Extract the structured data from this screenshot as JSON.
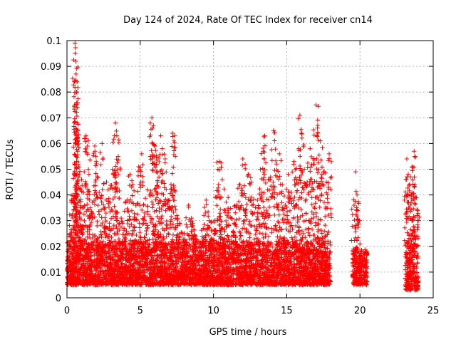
{
  "chart_data": {
    "type": "scatter",
    "title": "Day 124 of 2024, Rate Of TEC Index for receiver cn14",
    "xlabel": "GPS time / hours",
    "ylabel": "ROTI / TECUs",
    "xlim": [
      0,
      25
    ],
    "ylim": [
      0,
      0.1
    ],
    "xticks": [
      "0",
      "5",
      "10",
      "15",
      "20",
      "25"
    ],
    "yticks": [
      "0",
      "0.01",
      "0.02",
      "0.03",
      "0.04",
      "0.05",
      "0.06",
      "0.07",
      "0.08",
      "0.09",
      "0.1"
    ],
    "grid": true,
    "marker": "+",
    "color": "#ff0000",
    "series": [
      {
        "points": [
          [
            0.1,
            0.012
          ],
          [
            0.2,
            0.025
          ],
          [
            0.3,
            0.038
          ],
          [
            0.4,
            0.031
          ],
          [
            0.5,
            0.048
          ],
          [
            0.55,
            0.099
          ],
          [
            0.6,
            0.092
          ],
          [
            0.62,
            0.087
          ],
          [
            0.65,
            0.08
          ],
          [
            0.68,
            0.074
          ],
          [
            0.7,
            0.068
          ],
          [
            0.72,
            0.057
          ],
          [
            0.8,
            0.043
          ],
          [
            0.9,
            0.035
          ],
          [
            1.0,
            0.046
          ],
          [
            1.1,
            0.028
          ],
          [
            1.3,
            0.063
          ],
          [
            1.4,
            0.059
          ],
          [
            1.5,
            0.048
          ],
          [
            1.7,
            0.033
          ],
          [
            1.9,
            0.059
          ],
          [
            2.0,
            0.053
          ],
          [
            2.2,
            0.041
          ],
          [
            2.4,
            0.06
          ],
          [
            2.6,
            0.035
          ],
          [
            2.7,
            0.045
          ],
          [
            2.9,
            0.029
          ],
          [
            3.1,
            0.05
          ],
          [
            3.3,
            0.068
          ],
          [
            3.4,
            0.063
          ],
          [
            3.5,
            0.055
          ],
          [
            3.7,
            0.031
          ],
          [
            3.9,
            0.027
          ],
          [
            4.1,
            0.038
          ],
          [
            4.3,
            0.048
          ],
          [
            4.5,
            0.044
          ],
          [
            4.7,
            0.036
          ],
          [
            4.9,
            0.051
          ],
          [
            5.1,
            0.056
          ],
          [
            5.3,
            0.033
          ],
          [
            5.5,
            0.042
          ],
          [
            5.8,
            0.07
          ],
          [
            5.9,
            0.067
          ],
          [
            6.0,
            0.059
          ],
          [
            6.1,
            0.052
          ],
          [
            6.2,
            0.045
          ],
          [
            6.4,
            0.063
          ],
          [
            6.5,
            0.058
          ],
          [
            6.7,
            0.054
          ],
          [
            6.9,
            0.038
          ],
          [
            7.1,
            0.044
          ],
          [
            7.2,
            0.064
          ],
          [
            7.3,
            0.061
          ],
          [
            7.5,
            0.032
          ],
          [
            7.7,
            0.029
          ],
          [
            8.0,
            0.025
          ],
          [
            8.3,
            0.036
          ],
          [
            8.5,
            0.031
          ],
          [
            8.6,
            0.028
          ],
          [
            8.8,
            0.024
          ],
          [
            9.0,
            0.02
          ],
          [
            9.3,
            0.027
          ],
          [
            9.5,
            0.038
          ],
          [
            9.7,
            0.03
          ],
          [
            9.9,
            0.023
          ],
          [
            10.1,
            0.03
          ],
          [
            10.3,
            0.05
          ],
          [
            10.4,
            0.053
          ],
          [
            10.6,
            0.046
          ],
          [
            10.8,
            0.034
          ],
          [
            11.0,
            0.039
          ],
          [
            11.2,
            0.031
          ],
          [
            11.4,
            0.029
          ],
          [
            11.6,
            0.036
          ],
          [
            11.8,
            0.044
          ],
          [
            12.0,
            0.054
          ],
          [
            12.2,
            0.039
          ],
          [
            12.4,
            0.048
          ],
          [
            12.6,
            0.045
          ],
          [
            12.8,
            0.033
          ],
          [
            13.0,
            0.038
          ],
          [
            13.2,
            0.05
          ],
          [
            13.4,
            0.057
          ],
          [
            13.5,
            0.063
          ],
          [
            13.7,
            0.042
          ],
          [
            13.9,
            0.047
          ],
          [
            14.1,
            0.065
          ],
          [
            14.3,
            0.052
          ],
          [
            14.5,
            0.056
          ],
          [
            14.7,
            0.044
          ],
          [
            14.9,
            0.036
          ],
          [
            15.1,
            0.048
          ],
          [
            15.3,
            0.041
          ],
          [
            15.5,
            0.053
          ],
          [
            15.7,
            0.046
          ],
          [
            15.9,
            0.071
          ],
          [
            16.0,
            0.064
          ],
          [
            16.2,
            0.05
          ],
          [
            16.4,
            0.045
          ],
          [
            16.6,
            0.058
          ],
          [
            16.8,
            0.052
          ],
          [
            17.0,
            0.075
          ],
          [
            17.1,
            0.066
          ],
          [
            17.3,
            0.061
          ],
          [
            17.5,
            0.049
          ],
          [
            17.7,
            0.045
          ],
          [
            17.9,
            0.056
          ],
          [
            19.6,
            0.036
          ],
          [
            19.7,
            0.049
          ],
          [
            19.8,
            0.04
          ],
          [
            20.0,
            0.021
          ],
          [
            20.2,
            0.018
          ],
          [
            20.4,
            0.014
          ],
          [
            23.2,
            0.054
          ],
          [
            23.3,
            0.048
          ],
          [
            23.4,
            0.044
          ],
          [
            23.5,
            0.04
          ],
          [
            23.6,
            0.051
          ],
          [
            23.7,
            0.057
          ],
          [
            23.8,
            0.039
          ],
          [
            23.9,
            0.032
          ]
        ],
        "band": [
          {
            "x0": 0,
            "x1": 18,
            "lo": 0.005,
            "hi": 0.022
          },
          {
            "x0": 19.5,
            "x1": 20.5,
            "lo": 0.005,
            "hi": 0.02
          },
          {
            "x0": 23.1,
            "x1": 24.0,
            "lo": 0.003,
            "hi": 0.022
          }
        ]
      }
    ]
  }
}
